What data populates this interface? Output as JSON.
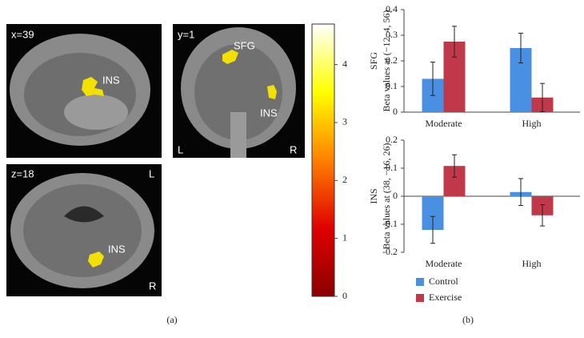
{
  "brain_panel": {
    "views": [
      {
        "label": "x=39",
        "regions": [
          "INS"
        ]
      },
      {
        "label": "y=1",
        "regions": [
          "SFG",
          "INS"
        ],
        "sides": [
          "L",
          "R"
        ]
      },
      {
        "label": "z=18",
        "regions": [
          "INS"
        ],
        "sides": [
          "L",
          "R"
        ]
      }
    ],
    "colorbar": {
      "ylim": [
        0,
        4.7
      ],
      "yticks": [
        0,
        1,
        2,
        3,
        4
      ],
      "colors": [
        "#8b0000",
        "#e00000",
        "#ff8000",
        "#ffff00",
        "#ffffff"
      ]
    },
    "caption": "(a)"
  },
  "chart_data": [
    {
      "type": "bar",
      "region_label": "SFG",
      "y_label": "Beta values at (−12, 4, 56)",
      "categories": [
        "Moderate",
        "High"
      ],
      "series": [
        {
          "color": "#4a90e2",
          "values": [
            0.13,
            0.25
          ],
          "errors": [
            0.065,
            0.058
          ]
        },
        {
          "color": "#c0394a",
          "values": [
            0.275,
            0.057
          ],
          "errors": [
            0.06,
            0.055
          ]
        }
      ],
      "ylim": [
        0,
        0.4
      ],
      "yticks": [
        0,
        0.1,
        0.2,
        0.3,
        0.4
      ]
    },
    {
      "type": "bar",
      "region_label": "INS",
      "y_label": "Beta values at (38, −16, 26)",
      "categories": [
        "Moderate",
        "High"
      ],
      "series": [
        {
          "name": "Control",
          "color": "#4a90e2",
          "values": [
            -0.12,
            0.015
          ],
          "errors": [
            0.048,
            0.048
          ]
        },
        {
          "name": "Exercise",
          "color": "#c0394a",
          "values": [
            0.108,
            -0.068
          ],
          "errors": [
            0.04,
            0.038
          ]
        }
      ],
      "ylim": [
        -0.2,
        0.2
      ],
      "yticks": [
        -0.2,
        -0.1,
        0,
        0.1,
        0.2
      ]
    }
  ],
  "caption_b": "(b)"
}
